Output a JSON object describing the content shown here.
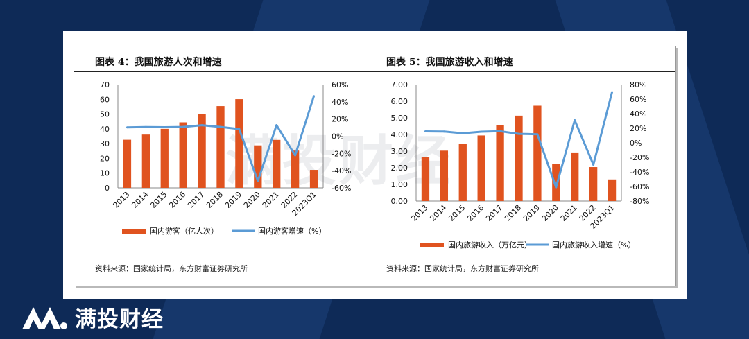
{
  "brand": {
    "name": "满投财经",
    "logo_icon": "mt-logo-icon",
    "watermark": "满投财经"
  },
  "colors": {
    "background": "#0e2a57",
    "bar": "#e0531f",
    "line": "#5b9bd5"
  },
  "charts": [
    {
      "title": "图表 4：我国旅游人次和增速",
      "source": "资料来源：国家统计局，东方财富证券研究所",
      "chart_data": {
        "type": "bar",
        "categories": [
          "2013",
          "2014",
          "2015",
          "2016",
          "2017",
          "2018",
          "2019",
          "2020",
          "2021",
          "2022",
          "2023Q1"
        ],
        "series": [
          {
            "name": "国内游客（亿人次）",
            "type": "bar",
            "axis": "left",
            "values": [
              32.6,
              36.1,
              40.0,
              44.4,
              50.0,
              55.4,
              60.1,
              28.8,
              32.5,
              25.3,
              12.2
            ]
          },
          {
            "name": "国内游客增速（%）",
            "type": "line",
            "axis": "right",
            "values": [
              10.3,
              10.7,
              10.5,
              10.8,
              12.8,
              10.8,
              8.4,
              -52.1,
              12.8,
              -22.1,
              46.5
            ]
          }
        ],
        "ylim_left": [
          0,
          70
        ],
        "yticks_left": [
          "0",
          "10",
          "20",
          "30",
          "40",
          "50",
          "60",
          "70"
        ],
        "ylim_right": [
          -60,
          60
        ],
        "yticks_right": [
          "-60%",
          "-40%",
          "-20%",
          "0%",
          "20%",
          "40%",
          "60%"
        ],
        "legend_position": "bottom",
        "grid": false
      }
    },
    {
      "title": "图表 5：我国旅游收入和增速",
      "source": "资料来源：国家统计局，东方财富证券研究所",
      "chart_data": {
        "type": "bar",
        "categories": [
          "2013",
          "2014",
          "2015",
          "2016",
          "2017",
          "2018",
          "2019",
          "2020",
          "2021",
          "2022",
          "2023Q1"
        ],
        "series": [
          {
            "name": "国内旅游收入（万亿元）",
            "type": "bar",
            "axis": "left",
            "values": [
              2.63,
              3.03,
              3.42,
              3.94,
              4.57,
              5.13,
              5.73,
              2.23,
              2.92,
              2.04,
              1.3
            ]
          },
          {
            "name": "国内旅游收入增速（%）",
            "type": "line",
            "axis": "right",
            "values": [
              15.7,
              15.4,
              13.1,
              15.2,
              15.9,
              12.3,
              11.7,
              -61.1,
              31.0,
              -30.0,
              69.5
            ]
          }
        ],
        "ylim_left": [
          0,
          7
        ],
        "yticks_left": [
          "0.00",
          "1.00",
          "2.00",
          "3.00",
          "4.00",
          "5.00",
          "6.00",
          "7.00"
        ],
        "ylim_right": [
          -80,
          80
        ],
        "yticks_right": [
          "-80%",
          "-60%",
          "-40%",
          "-20%",
          "0%",
          "20%",
          "40%",
          "60%",
          "80%"
        ],
        "legend_position": "bottom",
        "grid": false
      }
    }
  ]
}
